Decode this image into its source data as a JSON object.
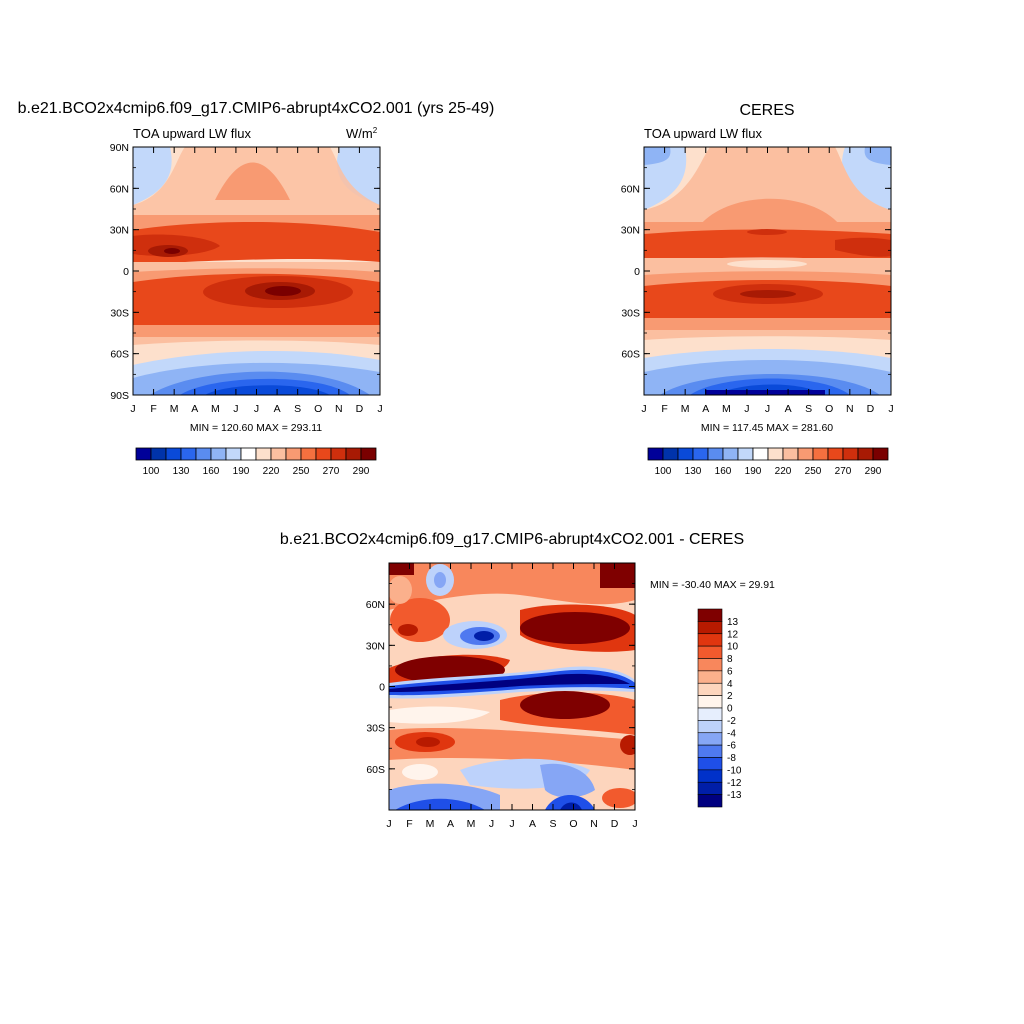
{
  "colors": {
    "abs_scale": [
      "#000099",
      "#0033aa",
      "#0a4ad9",
      "#2a66ee",
      "#5a8cf0",
      "#8fb4f5",
      "#c2d8fa",
      "#ffffff",
      "#fde0cc",
      "#fbbfa0",
      "#f89a72",
      "#f4703f",
      "#e8481b",
      "#cf2f0d",
      "#a81a04",
      "#7a0000"
    ],
    "diff_scale": [
      "#000080",
      "#001ea8",
      "#0031c9",
      "#1f4fe8",
      "#4f79f0",
      "#86a6f5",
      "#bdd2fb",
      "#e6eefd",
      "#fff4ec",
      "#fdd5bd",
      "#fbb08c",
      "#f8875c",
      "#f25a2d",
      "#e0360f",
      "#b81a00",
      "#7f0000"
    ]
  },
  "panels": {
    "model": {
      "title": "b.e21.BCO2x4cmip6.f09_g17.CMIP6-abrupt4xCO2.001 (yrs 25-49)",
      "left_label": "TOA upward LW flux",
      "units": "W/m",
      "units_sup": "2",
      "minmax": "MIN = 120.60 MAX = 293.11",
      "y_ticks": [
        "90N",
        "60N",
        "30N",
        "0",
        "30S",
        "60S",
        "90S"
      ],
      "x_ticks": [
        "J",
        "F",
        "M",
        "A",
        "M",
        "J",
        "J",
        "A",
        "S",
        "O",
        "N",
        "D",
        "J"
      ],
      "colorbar_labels": [
        "100",
        "130",
        "160",
        "190",
        "220",
        "250",
        "270",
        "290"
      ]
    },
    "obs": {
      "title": "CERES",
      "left_label": "TOA upward LW flux",
      "minmax": "MIN = 117.45 MAX = 281.60",
      "y_ticks": [
        "60N",
        "30N",
        "0",
        "30S",
        "60S"
      ],
      "x_ticks": [
        "J",
        "F",
        "M",
        "A",
        "M",
        "J",
        "J",
        "A",
        "S",
        "O",
        "N",
        "D",
        "J"
      ],
      "colorbar_labels": [
        "100",
        "130",
        "160",
        "190",
        "220",
        "250",
        "270",
        "290"
      ]
    },
    "diff": {
      "title": "b.e21.BCO2x4cmip6.f09_g17.CMIP6-abrupt4xCO2.001 - CERES",
      "minmax": "MIN = -30.40 MAX =  29.91",
      "y_ticks": [
        "60N",
        "30N",
        "0",
        "30S",
        "60S"
      ],
      "x_ticks": [
        "J",
        "F",
        "M",
        "A",
        "M",
        "J",
        "J",
        "A",
        "S",
        "O",
        "N",
        "D",
        "J"
      ],
      "colorbar_labels": [
        "13",
        "12",
        "10",
        "8",
        "6",
        "4",
        "2",
        "0",
        "-2",
        "-4",
        "-6",
        "-8",
        "-10",
        "-12",
        "-13"
      ]
    }
  },
  "chart_data": [
    {
      "type": "heatmap",
      "title": "b.e21.BCO2x4cmip6.f09_g17.CMIP6-abrupt4xCO2.001 (yrs 25-49)",
      "variable": "TOA upward LW flux",
      "units": "W/m2",
      "x": [
        "J",
        "F",
        "M",
        "A",
        "M",
        "J",
        "J",
        "A",
        "S",
        "O",
        "N",
        "D",
        "J"
      ],
      "y_range": [
        "90S",
        "90N"
      ],
      "min": 120.6,
      "max": 293.11,
      "levels": [
        100,
        130,
        160,
        190,
        220,
        250,
        270,
        290
      ]
    },
    {
      "type": "heatmap",
      "title": "CERES",
      "variable": "TOA upward LW flux",
      "x": [
        "J",
        "F",
        "M",
        "A",
        "M",
        "J",
        "J",
        "A",
        "S",
        "O",
        "N",
        "D",
        "J"
      ],
      "min": 117.45,
      "max": 281.6,
      "levels": [
        100,
        130,
        160,
        190,
        220,
        250,
        270,
        290
      ]
    },
    {
      "type": "heatmap",
      "title": "b.e21.BCO2x4cmip6.f09_g17.CMIP6-abrupt4xCO2.001 - CERES",
      "x": [
        "J",
        "F",
        "M",
        "A",
        "M",
        "J",
        "J",
        "A",
        "S",
        "O",
        "N",
        "D",
        "J"
      ],
      "min": -30.4,
      "max": 29.91,
      "levels": [
        -13,
        -12,
        -10,
        -8,
        -6,
        -4,
        -2,
        0,
        2,
        4,
        6,
        8,
        10,
        12,
        13
      ]
    }
  ]
}
